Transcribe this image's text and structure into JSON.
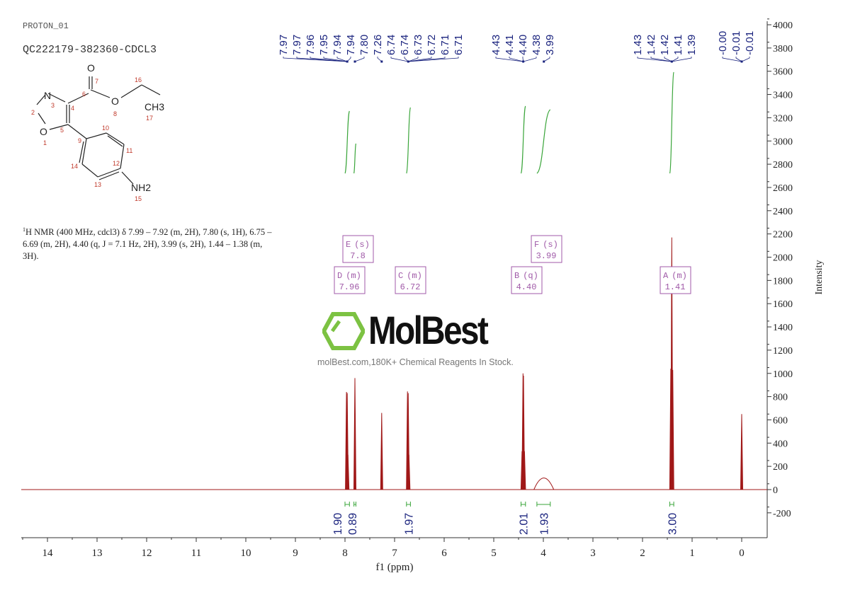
{
  "header": {
    "experiment": "PROTON_01",
    "sample": "QC222179-382360-CDCL3"
  },
  "structure": {
    "atoms": [
      "O",
      "N",
      "O",
      "O",
      "CH3",
      "NH2"
    ],
    "numbering": [
      "1",
      "2",
      "3",
      "4",
      "5",
      "6",
      "7",
      "8",
      "9",
      "10",
      "11",
      "12",
      "13",
      "14",
      "15",
      "16",
      "17"
    ]
  },
  "description": {
    "sup": "1",
    "text": "H NMR (400 MHz, cdcl3) δ 7.99 – 7.92 (m, 2H), 7.80 (s, 1H), 6.75 – 6.69 (m, 2H), 4.40 (q, J = 7.1 Hz, 2H), 3.99 (s, 2H), 1.44 – 1.38 (m, 3H)."
  },
  "watermark": {
    "logo": "MolBest",
    "text": "molBest.com,180K+ Chemical Reagents In Stock."
  },
  "chart_data": {
    "type": "line",
    "xlabel": "f1 (ppm)",
    "ylabel": "Intensity",
    "xlim": [
      14.5,
      -0.5
    ],
    "ylim": [
      -400,
      4000
    ],
    "x_reversed": true,
    "x_ticks": [
      "14",
      "13",
      "12",
      "11",
      "10",
      "9",
      "8",
      "7",
      "6",
      "5",
      "4",
      "3",
      "2",
      "1",
      "0"
    ],
    "y_ticks": [
      "-200",
      "0",
      "200",
      "400",
      "600",
      "800",
      "1000",
      "1200",
      "1400",
      "1600",
      "1800",
      "2000",
      "2200",
      "2400",
      "2600",
      "2800",
      "3000",
      "3200",
      "3400",
      "3600",
      "3800",
      "4000"
    ],
    "peaks": [
      {
        "ppm": 7.97,
        "intensity": 840
      },
      {
        "ppm": 7.955,
        "intensity": 830
      },
      {
        "ppm": 7.94,
        "intensity": 300
      },
      {
        "ppm": 7.8,
        "intensity": 960
      },
      {
        "ppm": 7.26,
        "intensity": 660
      },
      {
        "ppm": 6.74,
        "intensity": 845
      },
      {
        "ppm": 6.725,
        "intensity": 830
      },
      {
        "ppm": 6.71,
        "intensity": 300
      },
      {
        "ppm": 4.43,
        "intensity": 330
      },
      {
        "ppm": 4.41,
        "intensity": 1000
      },
      {
        "ppm": 4.4,
        "intensity": 980
      },
      {
        "ppm": 4.38,
        "intensity": 330
      },
      {
        "ppm": 3.99,
        "intensity": 100,
        "broad": true
      },
      {
        "ppm": 1.43,
        "intensity": 1040
      },
      {
        "ppm": 1.41,
        "intensity": 2170
      },
      {
        "ppm": 1.39,
        "intensity": 1030
      },
      {
        "ppm": 0.0,
        "intensity": 650
      }
    ],
    "peak_labels": [
      {
        "group": 1,
        "target": 7.955,
        "labels": [
          "7.97",
          "7.97",
          "7.96",
          "7.95",
          "7.94",
          "7.94"
        ]
      },
      {
        "group": 2,
        "target": 7.8,
        "labels": [
          "7.80"
        ]
      },
      {
        "group": 3,
        "target": 7.26,
        "labels": [
          "7.26"
        ]
      },
      {
        "group": 4,
        "target": 6.725,
        "labels": [
          "6.74",
          "6.74",
          "6.73",
          "6.72",
          "6.71",
          "6.71"
        ]
      },
      {
        "group": 5,
        "target": 4.405,
        "labels": [
          "4.43",
          "4.41",
          "4.40",
          "4.38"
        ]
      },
      {
        "group": 6,
        "target": 3.99,
        "labels": [
          "3.99"
        ]
      },
      {
        "group": 7,
        "target": 1.41,
        "labels": [
          "1.43",
          "1.42",
          "1.42",
          "1.41",
          "1.39"
        ]
      },
      {
        "group": 8,
        "target": 0.0,
        "labels": [
          "-0.00",
          "-0.01",
          "-0.01"
        ]
      }
    ],
    "integrals": [
      {
        "from": 8.0,
        "to": 7.91,
        "value": "1.90"
      },
      {
        "from": 7.82,
        "to": 7.78,
        "value": "0.89"
      },
      {
        "from": 6.76,
        "to": 6.68,
        "value": "1.97"
      },
      {
        "from": 4.45,
        "to": 4.36,
        "value": "2.01"
      },
      {
        "from": 4.13,
        "to": 3.86,
        "value": "1.93"
      },
      {
        "from": 1.45,
        "to": 1.37,
        "value": "3.00"
      }
    ],
    "multiplets": [
      {
        "label": "E",
        "type": "(s)",
        "shift": "7.8"
      },
      {
        "label": "D",
        "type": "(m)",
        "shift": "7.96"
      },
      {
        "label": "C",
        "type": "(m)",
        "shift": "6.72"
      },
      {
        "label": "F",
        "type": "(s)",
        "shift": "3.99"
      },
      {
        "label": "B",
        "type": "(q)",
        "shift": "4.40"
      },
      {
        "label": "A",
        "type": "(m)",
        "shift": "1.41"
      }
    ],
    "colors": {
      "spectrum": "#a01818",
      "peak_labels": "#1a237e",
      "integral": "#3aa53a",
      "multiplet": "#a05aa8",
      "axis": "#333333"
    }
  }
}
